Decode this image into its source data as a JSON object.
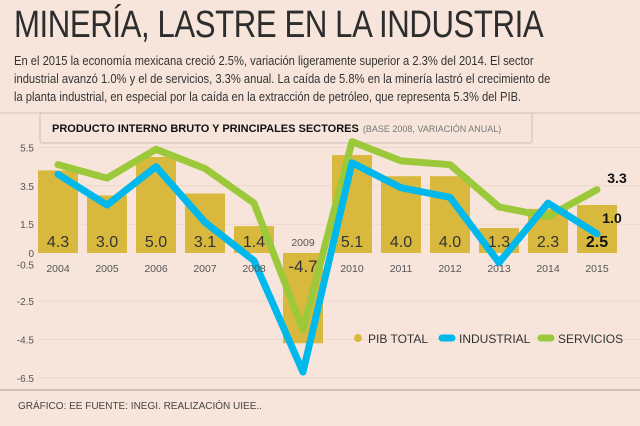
{
  "header": {
    "title": "MINERÍA, LASTRE EN LA INDUSTRIA",
    "paragraph_lines": [
      "En el 2015 la economía mexicana creció 2.5%, variación ligeramente superior a 2.3% del 2014. El sector",
      "industrial avanzó 1.0% y el de servicios, 3.3% anual. La caída de 5.8% en la minería lastró el crecimiento de",
      "la planta industrial, en especial por la caída en la extracción de petróleo, que representa 5.3% del PIB."
    ]
  },
  "footer": "GRÁFICO: EE  FUENTE: INEGI. REALIZACIÓN UIEE..",
  "colors": {
    "pib": "#d8b93e",
    "industrial": "#00b8ec",
    "servicios": "#9cc93a",
    "background": "#f7e5db"
  },
  "chart_data": {
    "type": "bar+line",
    "title": "PRODUCTO INTERNO BRUTO Y PRINCIPALES SECTORES",
    "subtitle": "(BASE 2008, VARIACIÓN ANUAL)",
    "categories": [
      "2004",
      "2005",
      "2006",
      "2007",
      "2008",
      "2009",
      "2010",
      "2011",
      "2012",
      "2013",
      "2014",
      "2015"
    ],
    "y_ticks": [
      "5.5",
      "3.5",
      "1.5",
      "0",
      "-0.5",
      "-2.5",
      "-4.5",
      "-6.5"
    ],
    "ylim": [
      -6.5,
      5.5
    ],
    "grid": true,
    "legend": "bottom-right",
    "series": [
      {
        "name": "PIB TOTAL",
        "type": "bar",
        "values": [
          4.3,
          3.0,
          5.0,
          3.1,
          1.4,
          -4.7,
          5.1,
          4.0,
          4.0,
          1.3,
          2.3,
          2.5
        ],
        "labels": [
          "4.3",
          "3.0",
          "5.0",
          "3.1",
          "1.4",
          "-4.7",
          "5.1",
          "4.0",
          "4.0",
          "1.3",
          "2.3",
          "2.5"
        ]
      },
      {
        "name": "INDUSTRIAL",
        "type": "line",
        "values": [
          4.1,
          2.5,
          4.5,
          1.6,
          -0.4,
          -6.2,
          4.7,
          3.4,
          2.9,
          -0.5,
          2.6,
          1.0
        ],
        "end_label": "1.0"
      },
      {
        "name": "SERVICIOS",
        "type": "line",
        "values": [
          4.6,
          3.9,
          5.4,
          4.4,
          2.6,
          -4.0,
          5.8,
          4.8,
          4.6,
          2.4,
          1.9,
          3.3
        ],
        "end_label": "3.3"
      }
    ]
  }
}
